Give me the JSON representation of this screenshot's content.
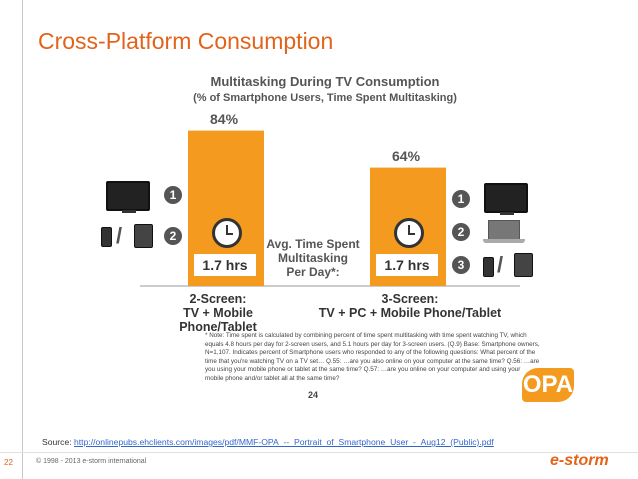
{
  "slide": {
    "title": "Cross-Platform Consumption",
    "source_label": "Source:",
    "source_url": "http://onlinepubs.ehclients.com/images/pdf/MMF-OPA_--_Portrait_of_Smartphone_User_-_Aug12_(Public).pdf",
    "footer_page": "22",
    "copyright": "© 1998 - 2013 e-storm international",
    "logo_text": "e-storm",
    "opa_logo": "OPA"
  },
  "chart_data": {
    "type": "bar",
    "title": "Multitasking During TV Consumption",
    "subtitle": "(% of Smartphone Users, Time Spent Multitasking)",
    "categories": [
      "2-Screen: TV + Mobile Phone/Tablet",
      "3-Screen: TV + PC + Mobile Phone/Tablet"
    ],
    "category_lines": [
      [
        "2-Screen:",
        "TV + Mobile Phone/Tablet"
      ],
      [
        "3-Screen:",
        "TV + PC + Mobile Phone/Tablet"
      ]
    ],
    "values": [
      84,
      64
    ],
    "value_labels": [
      "84%",
      "64%"
    ],
    "hours_labels": [
      "1.7 hrs",
      "1.7 hrs"
    ],
    "ylim": [
      0,
      100
    ],
    "bar_color": "#f39a1f",
    "grid": false,
    "center_text": [
      "Avg. Time Spent",
      "Multitasking",
      "Per Day*:"
    ],
    "step_numbers_left": [
      "1",
      "2"
    ],
    "step_numbers_right": [
      "1",
      "2",
      "3"
    ],
    "icons_left": [
      "tv-icon",
      "phone-icon",
      "tablet-icon"
    ],
    "icons_right": [
      "tv-icon",
      "laptop-icon",
      "phone-icon",
      "tablet-icon"
    ],
    "note": "* Note: Time spent is calculated by combining percent of time spent multitasking with time spent watching TV, which equals 4.8 hours per day for 2-screen users, and 5.1 hours per day for 3-screen users. (Q.9) Base: Smartphone owners, N=1,107. Indicates percent of Smartphone users who responded to any of the following questions: What percent of the time that you're watching TV on a TV set… Q.55: …are you also online on your computer at the same time? Q.56: …are you using your mobile phone or tablet at the same time? Q.57: …are you online on your computer and using your mobile phone and/or tablet all at the same time?",
    "page_number": "24"
  }
}
